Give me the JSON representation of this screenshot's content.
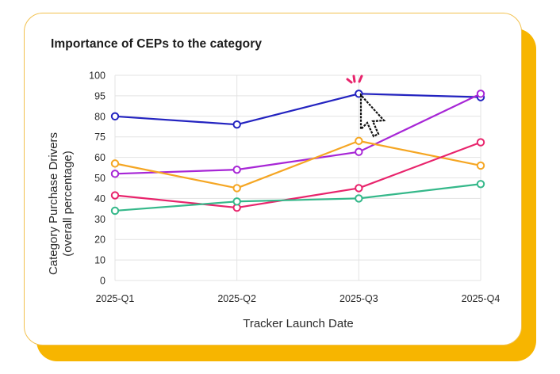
{
  "card": {
    "title": "Importance of CEPs to the category"
  },
  "colors": {
    "card_shadow": "#f7b500",
    "card_border": "#f2c14e",
    "grid": "#e3e3e3",
    "cursor_spark": "#e8246c"
  },
  "icons": {
    "cursor": "pointer-cursor-icon",
    "spark": "click-spark-icon"
  },
  "chart_data": {
    "type": "line",
    "title": "Importance of CEPs to the category",
    "xlabel": "Tracker Launch Date",
    "ylabel_lines": [
      "Category Purchase Drivers",
      "(overall percentage)"
    ],
    "categories": [
      "2025-Q1",
      "2025-Q2",
      "2025-Q3",
      "2025-Q4"
    ],
    "y_ticks": [
      0,
      10,
      20,
      30,
      40,
      50,
      60,
      75,
      80,
      95,
      100
    ],
    "grid": true,
    "legend": "none",
    "series": [
      {
        "color": "#2323c0",
        "values": [
          80,
          78,
          95.5,
          94
        ]
      },
      {
        "color": "#a726d6",
        "values": [
          52,
          54,
          64,
          95.5
        ]
      },
      {
        "color": "#f5a623",
        "values": [
          57,
          45,
          72,
          56
        ]
      },
      {
        "color": "#e8246c",
        "values": [
          41.5,
          35.5,
          45,
          71
        ]
      },
      {
        "color": "#35b88a",
        "values": [
          34,
          38.5,
          40,
          47
        ]
      }
    ]
  }
}
